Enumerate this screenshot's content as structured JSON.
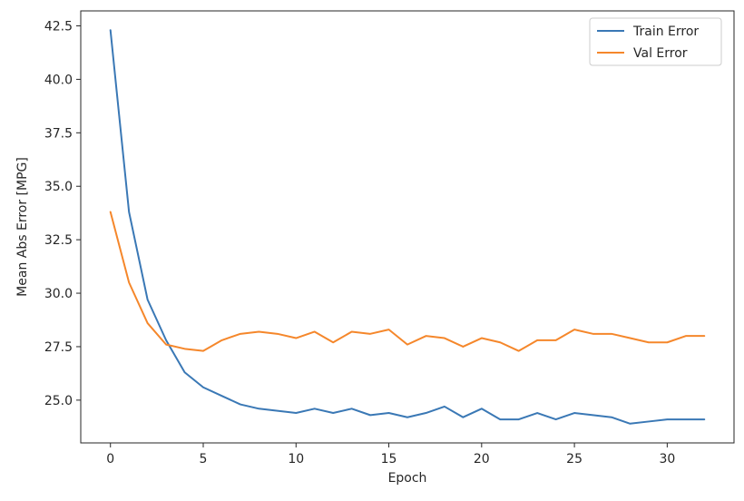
{
  "chart_data": {
    "type": "line",
    "title": "",
    "xlabel": "Epoch",
    "ylabel": "Mean Abs Error [MPG]",
    "xlim": [
      -1.6,
      33.6
    ],
    "ylim": [
      23.0,
      43.2
    ],
    "xticks": [
      0,
      5,
      10,
      15,
      20,
      25,
      30
    ],
    "yticks": [
      25.0,
      27.5,
      30.0,
      32.5,
      35.0,
      37.5,
      40.0,
      42.5
    ],
    "ytick_labels": [
      "25.0",
      "27.5",
      "30.0",
      "32.5",
      "35.0",
      "37.5",
      "40.0",
      "42.5"
    ],
    "xtick_labels": [
      "0",
      "5",
      "10",
      "15",
      "20",
      "25",
      "30"
    ],
    "grid": false,
    "legend_position": "top-right",
    "x": [
      0,
      1,
      2,
      3,
      4,
      5,
      6,
      7,
      8,
      9,
      10,
      11,
      12,
      13,
      14,
      15,
      16,
      17,
      18,
      19,
      20,
      21,
      22,
      23,
      24,
      25,
      26,
      27,
      28,
      29,
      30,
      31,
      32
    ],
    "series": [
      {
        "name": "Train Error",
        "color": "#3a78b5",
        "values": [
          42.3,
          33.8,
          29.7,
          27.8,
          26.3,
          25.6,
          25.2,
          24.8,
          24.6,
          24.5,
          24.4,
          24.6,
          24.4,
          24.6,
          24.3,
          24.4,
          24.2,
          24.4,
          24.7,
          24.2,
          24.6,
          24.1,
          24.1,
          24.4,
          24.1,
          24.4,
          24.3,
          24.2,
          23.9,
          24.0,
          24.1,
          24.1,
          24.1
        ]
      },
      {
        "name": "Val Error",
        "color": "#f5872b",
        "values": [
          33.8,
          30.5,
          28.6,
          27.6,
          27.4,
          27.3,
          27.8,
          28.1,
          28.2,
          28.1,
          27.9,
          28.2,
          27.7,
          28.2,
          28.1,
          28.3,
          27.6,
          28.0,
          27.9,
          27.5,
          27.9,
          27.7,
          27.3,
          27.8,
          27.8,
          28.3,
          28.1,
          28.1,
          27.9,
          27.7,
          27.7,
          28.0,
          28.0
        ]
      }
    ]
  }
}
